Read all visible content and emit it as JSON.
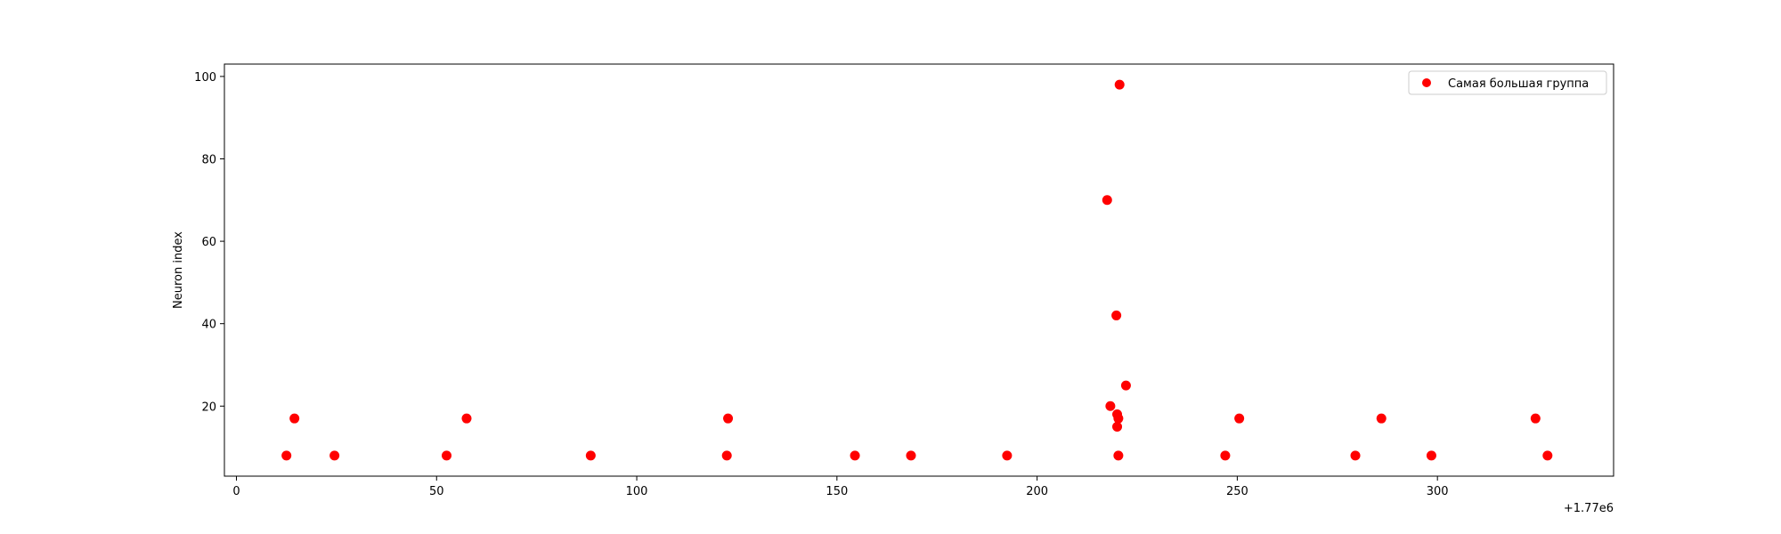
{
  "chart_data": {
    "type": "scatter",
    "title": "",
    "xlabel": "",
    "ylabel": "Neuron index",
    "x_offset_label": "+1.77e6",
    "xlim": [
      -3,
      344
    ],
    "ylim": [
      3,
      103
    ],
    "x_ticks": [
      0,
      50,
      100,
      150,
      200,
      250,
      300
    ],
    "x_tick_labels": [
      "0",
      "50",
      "100",
      "150",
      "200",
      "250",
      "300"
    ],
    "y_ticks": [
      20,
      40,
      60,
      80,
      100
    ],
    "y_tick_labels": [
      "20",
      "40",
      "60",
      "80",
      "100"
    ],
    "grid": false,
    "legend_position": "top-right",
    "series": [
      {
        "name": "Самая большая группа",
        "color": "#ff0000",
        "marker": "circle",
        "points": [
          {
            "x": 12.5,
            "y": 8
          },
          {
            "x": 14.5,
            "y": 17
          },
          {
            "x": 24.5,
            "y": 8
          },
          {
            "x": 52.5,
            "y": 8
          },
          {
            "x": 57.5,
            "y": 17
          },
          {
            "x": 88.5,
            "y": 8
          },
          {
            "x": 122.5,
            "y": 8
          },
          {
            "x": 122.8,
            "y": 17
          },
          {
            "x": 154.5,
            "y": 8
          },
          {
            "x": 168.5,
            "y": 8
          },
          {
            "x": 192.5,
            "y": 8
          },
          {
            "x": 217.5,
            "y": 70
          },
          {
            "x": 218.3,
            "y": 20
          },
          {
            "x": 219.8,
            "y": 42
          },
          {
            "x": 220.0,
            "y": 18
          },
          {
            "x": 220.0,
            "y": 15
          },
          {
            "x": 220.3,
            "y": 17
          },
          {
            "x": 220.3,
            "y": 8
          },
          {
            "x": 220.6,
            "y": 98
          },
          {
            "x": 222.2,
            "y": 25
          },
          {
            "x": 247.0,
            "y": 8
          },
          {
            "x": 250.5,
            "y": 17
          },
          {
            "x": 279.5,
            "y": 8
          },
          {
            "x": 286.0,
            "y": 17
          },
          {
            "x": 298.5,
            "y": 8
          },
          {
            "x": 324.5,
            "y": 17
          },
          {
            "x": 327.5,
            "y": 8
          }
        ]
      }
    ]
  }
}
